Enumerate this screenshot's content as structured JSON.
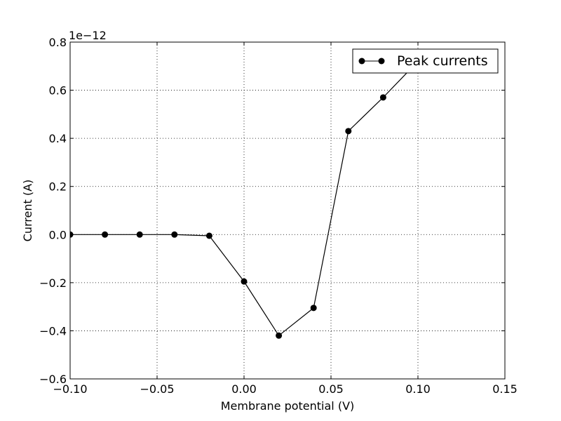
{
  "chart_data": {
    "type": "line",
    "xlabel": "Membrane potential (V)",
    "ylabel": "Current (A)",
    "y_offset_label": "1e−12",
    "xlim": [
      -0.1,
      0.15
    ],
    "ylim": [
      -0.6,
      0.8
    ],
    "x_ticks": [
      -0.1,
      -0.05,
      0.0,
      0.05,
      0.1,
      0.15
    ],
    "x_tick_labels": [
      "−0.10",
      "−0.05",
      "0.00",
      "0.05",
      "0.10",
      "0.15"
    ],
    "y_ticks": [
      -0.6,
      -0.4,
      -0.2,
      0.0,
      0.2,
      0.4,
      0.6,
      0.8
    ],
    "y_tick_labels": [
      "−0.6",
      "−0.4",
      "−0.2",
      "0.0",
      "0.2",
      "0.4",
      "0.6",
      "0.8"
    ],
    "grid": true,
    "legend_position": "top-right",
    "series": [
      {
        "name": "Peak currents",
        "color": "#000000",
        "marker": "circle",
        "x": [
          -0.1,
          -0.08,
          -0.06,
          -0.04,
          -0.02,
          0.0,
          0.02,
          0.04,
          0.06,
          0.08,
          0.1
        ],
        "y": [
          0.0,
          0.0,
          0.0,
          0.0,
          -0.005,
          -0.195,
          -0.42,
          -0.305,
          0.43,
          0.57,
          0.72
        ]
      }
    ]
  }
}
